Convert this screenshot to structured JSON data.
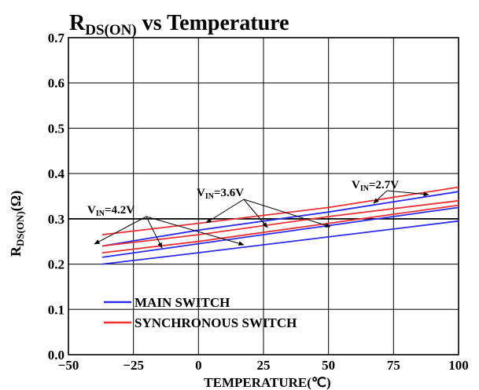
{
  "chart_data": {
    "type": "line",
    "title": "RDS(ON) vs Temperature",
    "title_main": "R",
    "title_sub": "DS(ON)",
    "title_rest": " vs Temperature",
    "xlabel": "TEMPERATURE(℃)",
    "ylabel_main": "R",
    "ylabel_sub": "DS(ON)",
    "ylabel_rest": "(Ω)",
    "xlim": [
      -50,
      100
    ],
    "ylim": [
      0.0,
      0.7
    ],
    "x_ticks": [
      "−50",
      "−25",
      "0",
      "25",
      "50",
      "75",
      "100"
    ],
    "y_ticks": [
      "0.0",
      "0.1",
      "0.2",
      "0.3",
      "0.4",
      "0.5",
      "0.6",
      "0.7"
    ],
    "grid": true,
    "legend_position": "bottom-left",
    "legend": [
      {
        "label": "MAIN SWITCH",
        "color": "#2b2bf0"
      },
      {
        "label": "SYNCHRONOUS SWITCH",
        "color": "#f03030"
      }
    ],
    "reference_line": {
      "y": 0.3,
      "color": "#000000"
    },
    "annotations": [
      {
        "text_main": "V",
        "text_sub": "IN",
        "text_rest": "=4.2V"
      },
      {
        "text_main": "V",
        "text_sub": "IN",
        "text_rest": "=3.6V"
      },
      {
        "text_main": "V",
        "text_sub": "IN",
        "text_rest": "=2.7V"
      }
    ],
    "series": [
      {
        "color": "#2b2bf0",
        "x": [
          -37,
          0,
          50,
          100
        ],
        "y": [
          0.2,
          0.225,
          0.26,
          0.295
        ]
      },
      {
        "color": "#2b2bf0",
        "x": [
          -37,
          0,
          50,
          100
        ],
        "y": [
          0.215,
          0.245,
          0.285,
          0.325
        ]
      },
      {
        "color": "#2b2bf0",
        "x": [
          -37,
          0,
          50,
          100
        ],
        "y": [
          0.24,
          0.275,
          0.315,
          0.36
        ]
      },
      {
        "color": "#f03030",
        "x": [
          -37,
          0,
          50,
          100
        ],
        "y": [
          0.225,
          0.25,
          0.29,
          0.33
        ]
      },
      {
        "color": "#f03030",
        "x": [
          -37,
          0,
          50,
          100
        ],
        "y": [
          0.24,
          0.265,
          0.305,
          0.34
        ]
      },
      {
        "color": "#f03030",
        "x": [
          -37,
          0,
          50,
          100
        ],
        "y": [
          0.265,
          0.29,
          0.325,
          0.37
        ]
      }
    ]
  }
}
